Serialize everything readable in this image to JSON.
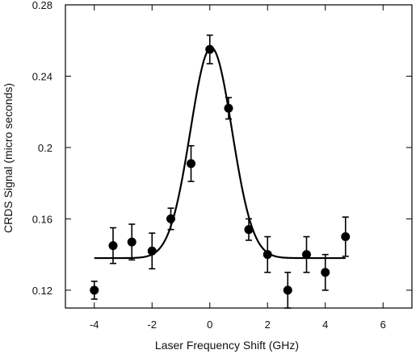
{
  "chart_data": {
    "type": "scatter",
    "title": "",
    "xlabel": "Laser Frequency Shift   (GHz)",
    "ylabel": "CRDS Signal (micro seconds)",
    "xlim": [
      -5,
      7
    ],
    "ylim": [
      0.11,
      0.28
    ],
    "x_ticks": [
      -4,
      -2,
      0,
      2,
      4,
      6
    ],
    "y_ticks": [
      0.12,
      0.16,
      0.2,
      0.24,
      0.28
    ],
    "x_tick_labels": [
      "-4",
      "-2",
      "0",
      "2",
      "4",
      "6"
    ],
    "y_tick_labels": [
      "0.12",
      "0.16",
      "0.2",
      "0.24",
      "0.28"
    ],
    "grid": false,
    "legend": "none",
    "colors": {
      "marker": "#000000",
      "fit_line": "#000000",
      "axes": "#000000"
    },
    "series": [
      {
        "kind": "points_with_error_bars",
        "x": [
          -4.0,
          -3.35,
          -2.7,
          -2.0,
          -1.35,
          -0.65,
          0.0,
          0.65,
          1.35,
          2.0,
          2.7,
          3.35,
          4.0,
          4.7
        ],
        "y": [
          0.12,
          0.145,
          0.147,
          0.142,
          0.16,
          0.191,
          0.255,
          0.222,
          0.154,
          0.14,
          0.12,
          0.14,
          0.13,
          0.15
        ],
        "err": [
          0.005,
          0.01,
          0.01,
          0.01,
          0.006,
          0.01,
          0.008,
          0.006,
          0.006,
          0.01,
          0.01,
          0.01,
          0.01,
          0.011
        ]
      },
      {
        "kind": "gaussian_fit_line",
        "baseline": 0.138,
        "amplitude": 0.118,
        "center": 0.05,
        "sigma": 0.72,
        "x_range": [
          -4.0,
          4.7
        ]
      }
    ]
  }
}
